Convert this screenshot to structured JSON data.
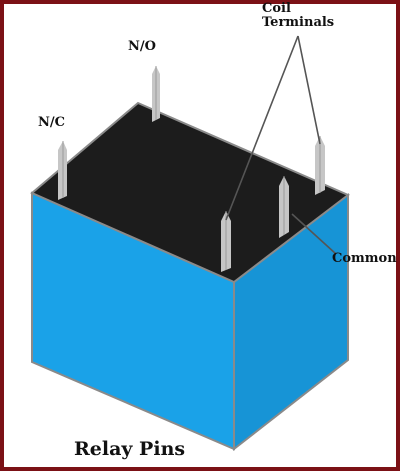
{
  "labels": {
    "no": "N/O",
    "nc": "N/C",
    "coil_line1": "Coil",
    "coil_line2": "Terminals",
    "common": "Common"
  },
  "caption": "Relay Pins",
  "colors": {
    "frame": "#7b1116",
    "body_front": "#1aa2e8",
    "body_side": "#1794d6",
    "body_top": "#1c1c1c",
    "edge": "#8a8a8a",
    "pin": "#c6c6c6",
    "pin_shadow": "#9a9a9a",
    "leader": "#555555"
  }
}
